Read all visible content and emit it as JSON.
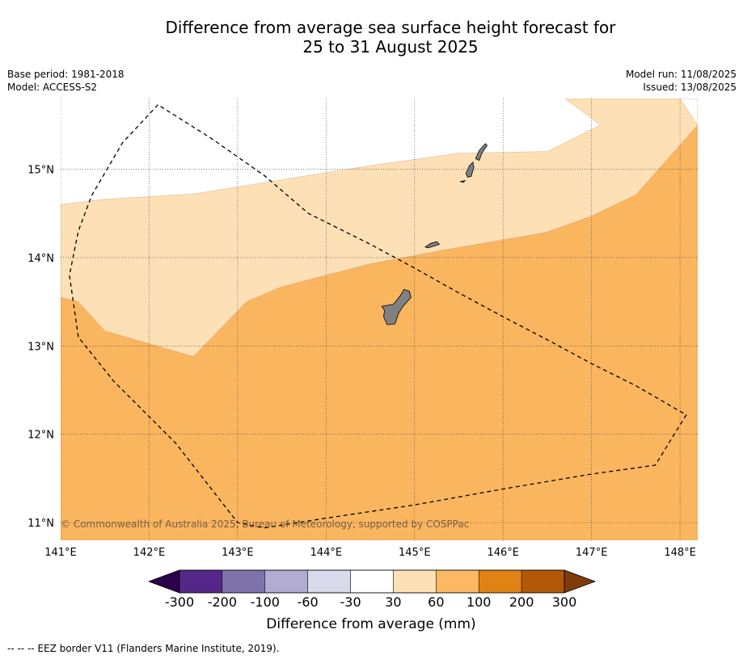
{
  "title": {
    "line1": "Difference from average sea surface height forecast for",
    "line2": "25 to 31 August 2025"
  },
  "meta": {
    "base_period": "Base period: 1981-2018",
    "model": "Model: ACCESS-S2",
    "model_run": "Model run: 11/08/2025",
    "issued": "Issued: 13/08/2025"
  },
  "map": {
    "lon_range": [
      141.0,
      148.2
    ],
    "lat_range": [
      10.8,
      15.8
    ],
    "lon_ticks": [
      141,
      142,
      143,
      144,
      145,
      146,
      147,
      148
    ],
    "lon_tick_labels": [
      "141°E",
      "142°E",
      "143°E",
      "144°E",
      "145°E",
      "146°E",
      "147°E",
      "148°E"
    ],
    "lat_ticks": [
      11,
      12,
      13,
      14,
      15
    ],
    "lat_tick_labels": [
      "11°N",
      "12°N",
      "13°N",
      "14°N",
      "15°N"
    ],
    "copyright": "© Commonwealth of Australia 2025, Bureau of Meteorology, supported by COSPPac",
    "land_color": "#808080",
    "regions": [
      {
        "category": "60 to 100",
        "color": "#fab55f",
        "polygon": [
          [
            141.0,
            13.55
          ],
          [
            141.2,
            13.5
          ],
          [
            141.5,
            13.17
          ],
          [
            142.5,
            12.88
          ],
          [
            143.1,
            13.5
          ],
          [
            143.5,
            13.67
          ],
          [
            144.5,
            13.93
          ],
          [
            145.3,
            14.08
          ],
          [
            146.0,
            14.2
          ],
          [
            146.5,
            14.29
          ],
          [
            147.0,
            14.47
          ],
          [
            147.5,
            14.71
          ],
          [
            148.2,
            15.5
          ],
          [
            148.2,
            15.8
          ],
          [
            148.0,
            15.8
          ],
          [
            148.0,
            15.8
          ],
          [
            148.2,
            15.8
          ],
          [
            148.2,
            10.8
          ],
          [
            141.0,
            10.8
          ]
        ]
      },
      {
        "category": "30 to 60",
        "color": "#fde0b6",
        "polygon": [
          [
            141.0,
            14.6
          ],
          [
            141.5,
            14.66
          ],
          [
            142.5,
            14.72
          ],
          [
            143.5,
            14.88
          ],
          [
            144.5,
            15.04
          ],
          [
            145.5,
            15.18
          ],
          [
            146.0,
            15.19
          ],
          [
            146.5,
            15.2
          ],
          [
            147.1,
            15.5
          ],
          [
            146.7,
            15.8
          ],
          [
            148.0,
            15.8
          ],
          [
            148.2,
            15.5
          ],
          [
            147.5,
            14.71
          ],
          [
            147.0,
            14.47
          ],
          [
            146.5,
            14.29
          ],
          [
            146.0,
            14.2
          ],
          [
            145.3,
            14.08
          ],
          [
            144.5,
            13.93
          ],
          [
            143.5,
            13.67
          ],
          [
            143.1,
            13.5
          ],
          [
            142.5,
            12.88
          ],
          [
            141.5,
            13.17
          ],
          [
            141.2,
            13.5
          ],
          [
            141.0,
            13.55
          ]
        ]
      }
    ],
    "islands": [
      {
        "name": "Guam",
        "polygon": [
          [
            144.63,
            13.45
          ],
          [
            144.76,
            13.47
          ],
          [
            144.84,
            13.57
          ],
          [
            144.88,
            13.64
          ],
          [
            144.94,
            13.62
          ],
          [
            144.96,
            13.55
          ],
          [
            144.87,
            13.45
          ],
          [
            144.82,
            13.37
          ],
          [
            144.78,
            13.25
          ],
          [
            144.69,
            13.24
          ],
          [
            144.65,
            13.33
          ],
          [
            144.66,
            13.4
          ]
        ]
      },
      {
        "name": "Rota",
        "polygon": [
          [
            145.12,
            14.12
          ],
          [
            145.18,
            14.16
          ],
          [
            145.25,
            14.18
          ],
          [
            145.28,
            14.15
          ],
          [
            145.22,
            14.13
          ],
          [
            145.15,
            14.11
          ]
        ]
      },
      {
        "name": "Tinian",
        "polygon": [
          [
            145.58,
            14.95
          ],
          [
            145.62,
            15.04
          ],
          [
            145.66,
            15.08
          ],
          [
            145.67,
            15.02
          ],
          [
            145.64,
            14.92
          ],
          [
            145.6,
            14.91
          ]
        ]
      },
      {
        "name": "Aguijan",
        "polygon": [
          [
            145.52,
            14.86
          ],
          [
            145.57,
            14.87
          ],
          [
            145.55,
            14.85
          ]
        ]
      },
      {
        "name": "Saipan",
        "polygon": [
          [
            145.69,
            15.12
          ],
          [
            145.73,
            15.21
          ],
          [
            145.8,
            15.29
          ],
          [
            145.82,
            15.27
          ],
          [
            145.76,
            15.18
          ],
          [
            145.73,
            15.1
          ]
        ]
      }
    ],
    "eez_border": [
      [
        142.1,
        15.73
      ],
      [
        141.7,
        15.3
      ],
      [
        141.35,
        14.7
      ],
      [
        141.2,
        14.3
      ],
      [
        141.1,
        13.8
      ],
      [
        141.2,
        13.1
      ],
      [
        141.6,
        12.6
      ],
      [
        142.3,
        11.9
      ],
      [
        143.0,
        11.0
      ],
      [
        143.3,
        10.94
      ],
      [
        144.0,
        11.05
      ],
      [
        145.0,
        11.2
      ],
      [
        146.0,
        11.38
      ],
      [
        147.0,
        11.55
      ],
      [
        147.72,
        11.65
      ],
      [
        148.07,
        12.22
      ],
      [
        147.5,
        12.55
      ],
      [
        147.0,
        12.8
      ],
      [
        146.5,
        13.07
      ],
      [
        146.0,
        13.33
      ],
      [
        145.5,
        13.6
      ],
      [
        145.0,
        13.88
      ],
      [
        144.5,
        14.15
      ],
      [
        143.8,
        14.5
      ],
      [
        143.3,
        14.93
      ],
      [
        142.7,
        15.35
      ]
    ]
  },
  "colorbar": {
    "title": "Difference from average (mm)",
    "boundaries": [
      "-300",
      "-200",
      "-100",
      "-60",
      "-30",
      "30",
      "60",
      "100",
      "200",
      "300"
    ],
    "colors": [
      "#542788",
      "#8073ac",
      "#b2abd2",
      "#d8daeb",
      "#ffffff",
      "#fee0b6",
      "#fdb863",
      "#e08214",
      "#b35806"
    ],
    "extend_low_color": "#2d004b",
    "extend_high_color": "#7f3b08"
  },
  "footer": {
    "legend_symbol": "-- -- --",
    "legend_text": "EEZ border V11 (Flanders Marine Institute, 2019)."
  }
}
